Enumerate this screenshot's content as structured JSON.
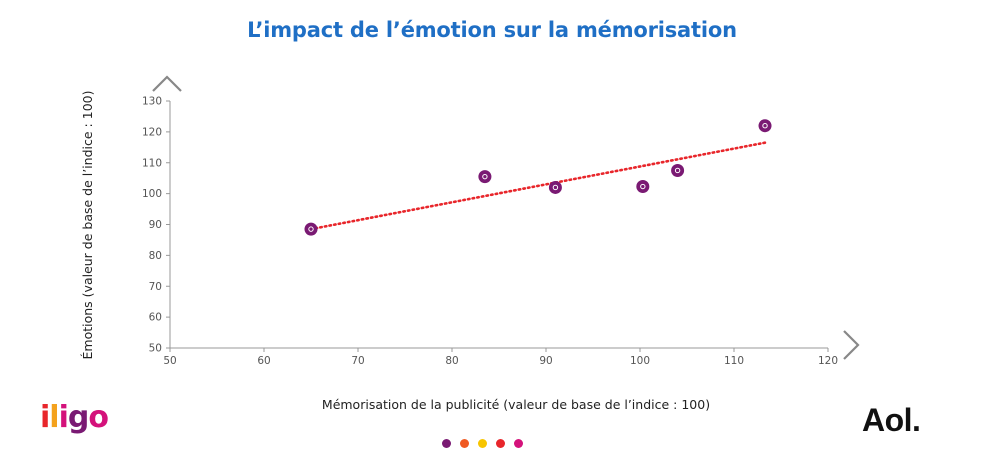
{
  "chart_data": {
    "type": "scatter",
    "title": "L’impact de l’émotion sur la mémorisation",
    "xlabel": "Mémorisation de la publicité (valeur de base de l’indice : 100)",
    "ylabel": "Émotions (valeur de base de l’indice : 100)",
    "xlim": [
      50,
      120
    ],
    "ylim": [
      50,
      130
    ],
    "xticks": [
      50,
      60,
      70,
      80,
      90,
      100,
      110,
      120
    ],
    "yticks": [
      50,
      60,
      70,
      80,
      90,
      100,
      110,
      120,
      130
    ],
    "grid": false,
    "points": [
      {
        "x": 65,
        "y": 88.5
      },
      {
        "x": 83.5,
        "y": 105.5
      },
      {
        "x": 91,
        "y": 102
      },
      {
        "x": 100.3,
        "y": 102.3
      },
      {
        "x": 104,
        "y": 107.5
      },
      {
        "x": 113.3,
        "y": 122
      }
    ],
    "trendline": {
      "x1": 65,
      "y1": 88.5,
      "x2": 113.3,
      "y2": 116.5
    },
    "colors": {
      "marker": "#7a1a73",
      "trend": "#e8262b",
      "axis": "#999999",
      "title": "#1f6fc5"
    }
  },
  "branding": {
    "left_logo_letters": [
      "i",
      "l",
      "i",
      "g",
      "o"
    ],
    "left_logo_colors": [
      "#e8262b",
      "#f4a21d",
      "#d4127b",
      "#7a1a73",
      "#d4127b"
    ],
    "right_logo": "Aol."
  },
  "pager": {
    "dots": [
      "#7a1a73",
      "#f05a22",
      "#f7c500",
      "#e8262b",
      "#d4127b"
    ]
  },
  "navigation": {
    "up": "chevron-up-icon",
    "right": "chevron-right-icon"
  }
}
